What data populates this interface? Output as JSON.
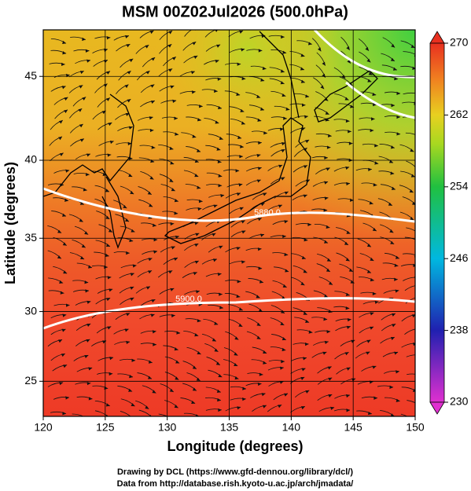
{
  "title": "MSM 00Z02Jul2026 (500.0hPa)",
  "map": {
    "x_label": "Longitude (degrees)",
    "y_label": "Latitude  (degrees)",
    "xlim": [
      120,
      150
    ],
    "ylim": [
      22.4,
      47.6
    ],
    "xticks": [
      120,
      125,
      130,
      135,
      140,
      145,
      150
    ],
    "yticks": [
      25,
      30,
      35,
      40,
      45
    ],
    "contour_labels": [
      "5880.0",
      "5900.0"
    ]
  },
  "colorbar": {
    "lim": [
      230,
      270
    ],
    "ticks": [
      230,
      238,
      246,
      254,
      262,
      270
    ]
  },
  "credits": [
    "Drawing by DCL (https://www.gfd-dennou.org/library/dcl/)",
    "Data from http://database.rish.kyoto-u.ac.jp/arch/jmadata/"
  ]
}
